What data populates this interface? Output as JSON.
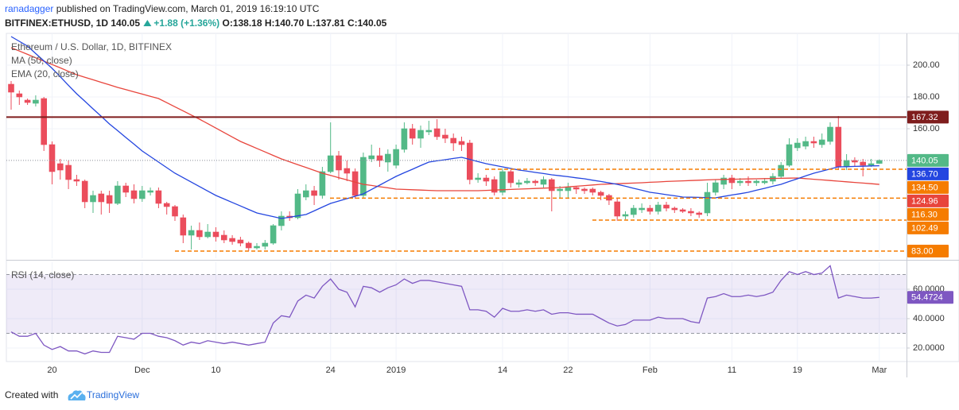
{
  "header": {
    "author": "ranadagger",
    "published": "published on TradingView.com, March 01, 2019 16:19:10 UTC",
    "symbol": "BITFINEX:ETHUSD, 1D",
    "last": "140.05",
    "change": "+1.88 (+1.36%)",
    "ohlc": [
      "O:138.18",
      "H:140.70",
      "L:137.81",
      "C:140.05"
    ]
  },
  "chart_data": [
    {
      "type": "candlestick",
      "title": "Ethereum / U.S. Dollar, 1D, BITFINEX",
      "up_color": "#53b987",
      "down_color": "#eb4d5c",
      "grid": true,
      "categories": [
        null,
        null,
        null,
        null,
        null,
        "20",
        null,
        null,
        null,
        null,
        null,
        null,
        null,
        null,
        null,
        null,
        "Dec",
        null,
        null,
        null,
        null,
        null,
        null,
        null,
        null,
        "10",
        null,
        null,
        null,
        null,
        null,
        null,
        null,
        null,
        null,
        null,
        null,
        null,
        null,
        "24",
        null,
        null,
        null,
        null,
        null,
        null,
        null,
        "2019",
        null,
        null,
        null,
        null,
        null,
        null,
        null,
        null,
        null,
        null,
        null,
        null,
        "14",
        null,
        null,
        null,
        null,
        null,
        null,
        null,
        "22",
        null,
        null,
        null,
        null,
        null,
        null,
        null,
        null,
        null,
        "Feb",
        null,
        null,
        null,
        null,
        null,
        null,
        null,
        null,
        null,
        "11",
        null,
        null,
        null,
        null,
        null,
        null,
        null,
        "19",
        null,
        null,
        null,
        null,
        null,
        null,
        null,
        null,
        null,
        "Mar"
      ],
      "open": [
        188,
        182,
        178,
        176,
        179,
        150,
        138,
        137,
        128,
        127,
        114,
        119,
        118,
        113,
        124,
        121,
        116,
        120,
        121,
        113,
        111,
        104,
        93,
        96,
        92,
        95,
        93,
        91,
        90,
        88,
        85,
        86,
        88,
        99,
        105,
        104,
        117,
        121,
        118,
        133,
        143,
        135,
        133,
        118,
        141,
        143,
        139,
        137,
        147,
        160,
        154,
        158,
        160,
        156,
        154,
        152,
        151,
        128,
        129,
        128,
        120,
        133,
        125,
        126,
        127,
        125,
        128,
        121,
        121,
        123,
        122,
        122,
        120,
        118,
        114,
        105,
        106,
        109,
        110,
        108,
        112,
        110,
        109,
        108,
        107,
        107,
        120,
        125,
        129,
        126,
        127,
        126,
        126,
        127,
        130,
        137,
        148,
        149,
        152,
        150,
        152,
        161,
        136,
        140,
        139,
        137,
        138.18
      ],
      "high": [
        190,
        184,
        179,
        181,
        180,
        152,
        141,
        140,
        131,
        128,
        121,
        121,
        121,
        127,
        126,
        125,
        124,
        123,
        123,
        114,
        112,
        106,
        99,
        101,
        100,
        98,
        96,
        93,
        92,
        89,
        88,
        90,
        100,
        108,
        108,
        122,
        125,
        124,
        136,
        164,
        146,
        140,
        135,
        145,
        150,
        148,
        147,
        150,
        164,
        163,
        162,
        165,
        166,
        160,
        157,
        155,
        153,
        132,
        131,
        130,
        135,
        134,
        128,
        129,
        128,
        130,
        129,
        124,
        126,
        124,
        123,
        123,
        121,
        119,
        116,
        108,
        112,
        113,
        112,
        114,
        114,
        111,
        110,
        110,
        108,
        126,
        128,
        131,
        131,
        129,
        130,
        128,
        129,
        132,
        139,
        154,
        154,
        155,
        155,
        157,
        164,
        168,
        144,
        142,
        141,
        141,
        140.7
      ],
      "low": [
        172,
        175,
        175,
        174,
        146,
        125,
        128,
        122,
        124,
        110,
        107,
        106,
        107,
        112,
        117,
        113,
        114,
        118,
        110,
        106,
        102,
        88,
        84,
        90,
        91,
        89,
        88,
        87,
        86,
        83,
        84,
        84,
        87,
        96,
        102,
        103,
        115,
        112,
        116,
        132,
        128,
        127,
        116,
        116,
        139,
        136,
        133,
        135,
        145,
        150,
        148,
        156,
        153,
        151,
        146,
        146,
        125,
        126,
        124,
        118,
        118,
        123,
        123,
        125,
        124,
        123,
        108,
        116,
        116,
        119,
        119,
        118,
        115,
        112,
        102,
        103,
        104,
        107,
        106,
        106,
        108,
        107,
        107,
        105,
        104,
        105,
        118,
        122,
        122,
        124,
        124,
        124,
        125,
        125,
        129,
        136,
        146,
        147,
        148,
        148,
        150,
        134,
        134,
        136,
        130,
        136,
        137.81
      ],
      "close": [
        183,
        180,
        176.5,
        178,
        150,
        133,
        134,
        128,
        127,
        114,
        118,
        114,
        113,
        124,
        120,
        116,
        121,
        121,
        113,
        111,
        105,
        93,
        96,
        92,
        95,
        92,
        90,
        89,
        88,
        85,
        86,
        88,
        99,
        105,
        104,
        119,
        121,
        118,
        133,
        143,
        134,
        132,
        118,
        142,
        143,
        140,
        144,
        147,
        160,
        154,
        159,
        159,
        155,
        154,
        151,
        150,
        128,
        129,
        127,
        120,
        133,
        126,
        126,
        127,
        126,
        128,
        121,
        122,
        123,
        122,
        121,
        120,
        118,
        115,
        105,
        106,
        110,
        110,
        108,
        112,
        110,
        109,
        108,
        107,
        106,
        120,
        126,
        129,
        126,
        127,
        126,
        127,
        127,
        130,
        137,
        150,
        151,
        152,
        151,
        153,
        161,
        136,
        140,
        139,
        137,
        138,
        140.05
      ],
      "series": [
        {
          "name": "MA (50, close)",
          "color": "#e8453c",
          "last_value_label": "124.96",
          "values": [
            211,
            208.9,
            206.8,
            204.6,
            202.5,
            200.4,
            198.3,
            196.1,
            194,
            192.4,
            190.8,
            189.2,
            187.6,
            186,
            184.6,
            183.2,
            181.8,
            180.4,
            179,
            176.4,
            173.8,
            171.2,
            168.6,
            166,
            163.2,
            160.4,
            157.6,
            154.8,
            152,
            149.8,
            147.6,
            145.4,
            143.2,
            141,
            139.2,
            137.4,
            135.6,
            133.8,
            132,
            130.6,
            129.2,
            127.8,
            126.4,
            125,
            124.3,
            123.5,
            122.8,
            122,
            121.8,
            121.6,
            121.4,
            121.2,
            121,
            121,
            121,
            121,
            121,
            121,
            121.2,
            121.4,
            121.6,
            121.8,
            122,
            122.2,
            122.4,
            122.6,
            122.8,
            123,
            123.4,
            123.8,
            124.2,
            124.6,
            125,
            125.2,
            125.4,
            125.6,
            125.8,
            126,
            126.3,
            126.5,
            126.8,
            127,
            127.2,
            127.4,
            127.6,
            127.8,
            128,
            128.1,
            128.2,
            128.3,
            128.4,
            128.5,
            128.6,
            128.7,
            128.8,
            128.9,
            129,
            128.6,
            128.2,
            127.8,
            127.4,
            127,
            126.6,
            126.2,
            125.8,
            125.4,
            124.96
          ]
        },
        {
          "name": "EMA (20, close)",
          "color": "#2446e0",
          "last_value_label": "136.70",
          "values": [
            218,
            215,
            212,
            207.3,
            202.7,
            198,
            192.7,
            187.3,
            182,
            177.3,
            172.5,
            167.8,
            163,
            158.8,
            154.5,
            150.3,
            146,
            142.5,
            139,
            135.5,
            132,
            129.2,
            126.4,
            123.6,
            120.8,
            118,
            115.8,
            113.6,
            111.4,
            109.2,
            107,
            105.8,
            104.7,
            103.5,
            104.3,
            105.2,
            106,
            108.3,
            110.7,
            113,
            114.5,
            116,
            117.5,
            119,
            121.8,
            124.5,
            127.3,
            130,
            132.3,
            134.5,
            136.8,
            139,
            139.8,
            140.5,
            141.3,
            142,
            140.7,
            139.3,
            138,
            137,
            136,
            135,
            134,
            133.3,
            132.5,
            131.8,
            131,
            130.4,
            129.8,
            129.1,
            128.5,
            127.6,
            126.8,
            125.9,
            125,
            123.8,
            122.5,
            121.3,
            120,
            119.3,
            118.5,
            117.8,
            117,
            116.9,
            116.8,
            116.6,
            116.5,
            117.4,
            118.3,
            119.1,
            120,
            121.3,
            122.5,
            123.8,
            125,
            126.8,
            128.5,
            130.3,
            132,
            133.3,
            134.7,
            136,
            136.1,
            136.3,
            136.4,
            136.6,
            136.7
          ]
        }
      ],
      "levels": [
        {
          "value": 167.32,
          "label": "167.32",
          "color": "#7f1d1d",
          "style": "solid"
        },
        {
          "value": 134.5,
          "label": "134.50",
          "color": "#f57c00",
          "style": "dashed"
        },
        {
          "value": 116.3,
          "label": "116.30",
          "color": "#f57c00",
          "style": "dashed"
        },
        {
          "value": 102.49,
          "label": "102.49",
          "color": "#f57c00",
          "style": "dashed"
        },
        {
          "value": 83,
          "label": "83.00",
          "color": "#f57c00",
          "style": "dashed"
        }
      ],
      "ylim": [
        78.5,
        220
      ],
      "yticks": [
        {
          "value": 200,
          "label": "200.00"
        },
        {
          "value": 180,
          "label": "180.00"
        },
        {
          "value": 160,
          "label": "160.00"
        }
      ]
    },
    {
      "type": "line",
      "grid": true,
      "series": [
        {
          "name": "RSI (14, close)",
          "color": "#7e57c2",
          "last_value_label": "54.4724",
          "values": [
            31,
            28,
            28,
            30,
            22,
            19,
            21,
            18,
            18,
            16,
            18,
            17,
            17,
            28,
            27,
            26,
            30,
            30,
            28,
            27,
            25,
            22,
            24,
            23,
            25,
            24,
            23,
            24,
            23,
            22,
            23,
            24,
            37,
            42,
            41,
            52,
            56,
            54,
            62,
            67,
            60,
            58,
            48,
            62,
            61,
            58,
            61,
            63,
            67,
            64,
            66,
            66,
            65,
            64,
            63,
            62,
            46,
            46,
            45,
            41,
            47,
            45,
            45,
            46,
            45,
            46,
            43,
            44,
            44,
            43,
            43,
            43,
            40,
            37,
            35,
            36,
            39,
            39,
            39,
            41,
            40,
            40,
            40,
            38,
            37,
            54,
            55,
            57,
            55,
            55,
            56,
            55,
            56,
            58,
            66,
            72,
            70,
            72,
            70,
            71,
            76,
            54,
            56,
            55,
            54,
            54,
            54.4724
          ]
        }
      ],
      "bands": [
        70,
        30
      ],
      "band_color": "#7e57c2",
      "ylim": [
        10.8,
        78.4
      ],
      "yticks": [
        {
          "value": 60,
          "label": "60.0000"
        },
        {
          "value": 40,
          "label": "40.0000"
        },
        {
          "value": 20,
          "label": "20.0000"
        }
      ]
    }
  ],
  "footer": {
    "created": "Created with",
    "brand": "TradingView"
  }
}
